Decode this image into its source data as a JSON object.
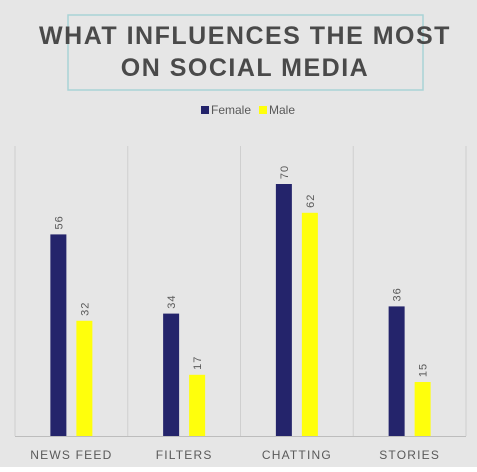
{
  "colors": {
    "background": "#e6e6e6",
    "title_border": "#a9d3d6",
    "title_text": "#4a4a4a",
    "gridline": "#cfcfcf",
    "axis_line": "#bdbdbd",
    "label_text": "#595959"
  },
  "chart_data": {
    "type": "bar",
    "title": [
      "WHAT INFLUENCES THE MOST",
      "ON SOCIAL MEDIA"
    ],
    "categories": [
      "NEWS FEED",
      "FILTERS",
      "CHATTING",
      "STORIES"
    ],
    "series": [
      {
        "name": "Female",
        "color": "#24246b",
        "values": [
          56,
          34,
          70,
          36
        ]
      },
      {
        "name": "Male",
        "color": "#ffff0c",
        "values": [
          32,
          17,
          62,
          15
        ]
      }
    ],
    "ylim": [
      0,
      80
    ],
    "legend_position": "top-center",
    "data_labels": true,
    "data_label_rotation": "vertical",
    "vertical_gridlines": true,
    "y_axis_visible": false
  }
}
